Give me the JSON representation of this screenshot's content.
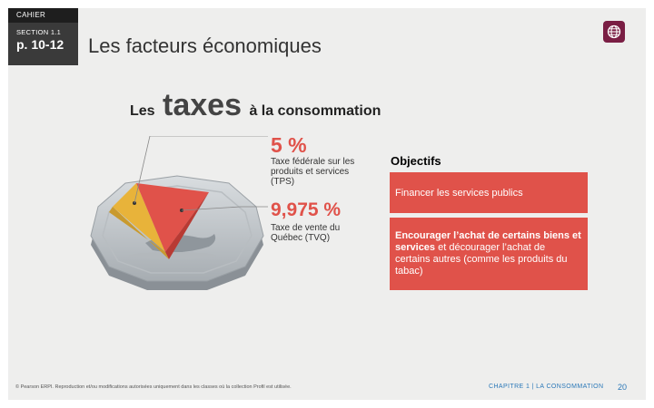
{
  "header": {
    "cahier": "CAHIER",
    "section_label": "SECTION 1.1",
    "pages": "p. 10-12",
    "title": "Les facteurs économiques"
  },
  "headline": {
    "prefix": "Les",
    "emphasis": "taxes",
    "suffix": "à la consommation"
  },
  "taxes": {
    "tps": {
      "percent": "5 %",
      "text": "Taxe fédérale sur les produits et services (TPS)"
    },
    "tvq": {
      "percent": "9,975 %",
      "text": "Taxe de vente du Québec (TVQ)"
    }
  },
  "objectifs": {
    "title": "Objectifs",
    "item1": "Financer les services publics",
    "item2_bold": "Encourager l’achat de certains biens et services",
    "item2_rest": " et décourager l’achat de certains autres (comme les produits du tabac)"
  },
  "footer": {
    "copyright": "© Pearson ERPI. Reproduction et/ou modifications autorisées uniquement dans les classes où la collection Profil est utilisée.",
    "chapter": "CHAPITRE 1 | LA CONSOMMATION",
    "page_number": "20"
  },
  "colors": {
    "accent_red": "#e0524a",
    "accent_yellow": "#e8b33a",
    "globe_bg": "#7a1e44"
  },
  "icons": {
    "globe": "globe-icon"
  }
}
